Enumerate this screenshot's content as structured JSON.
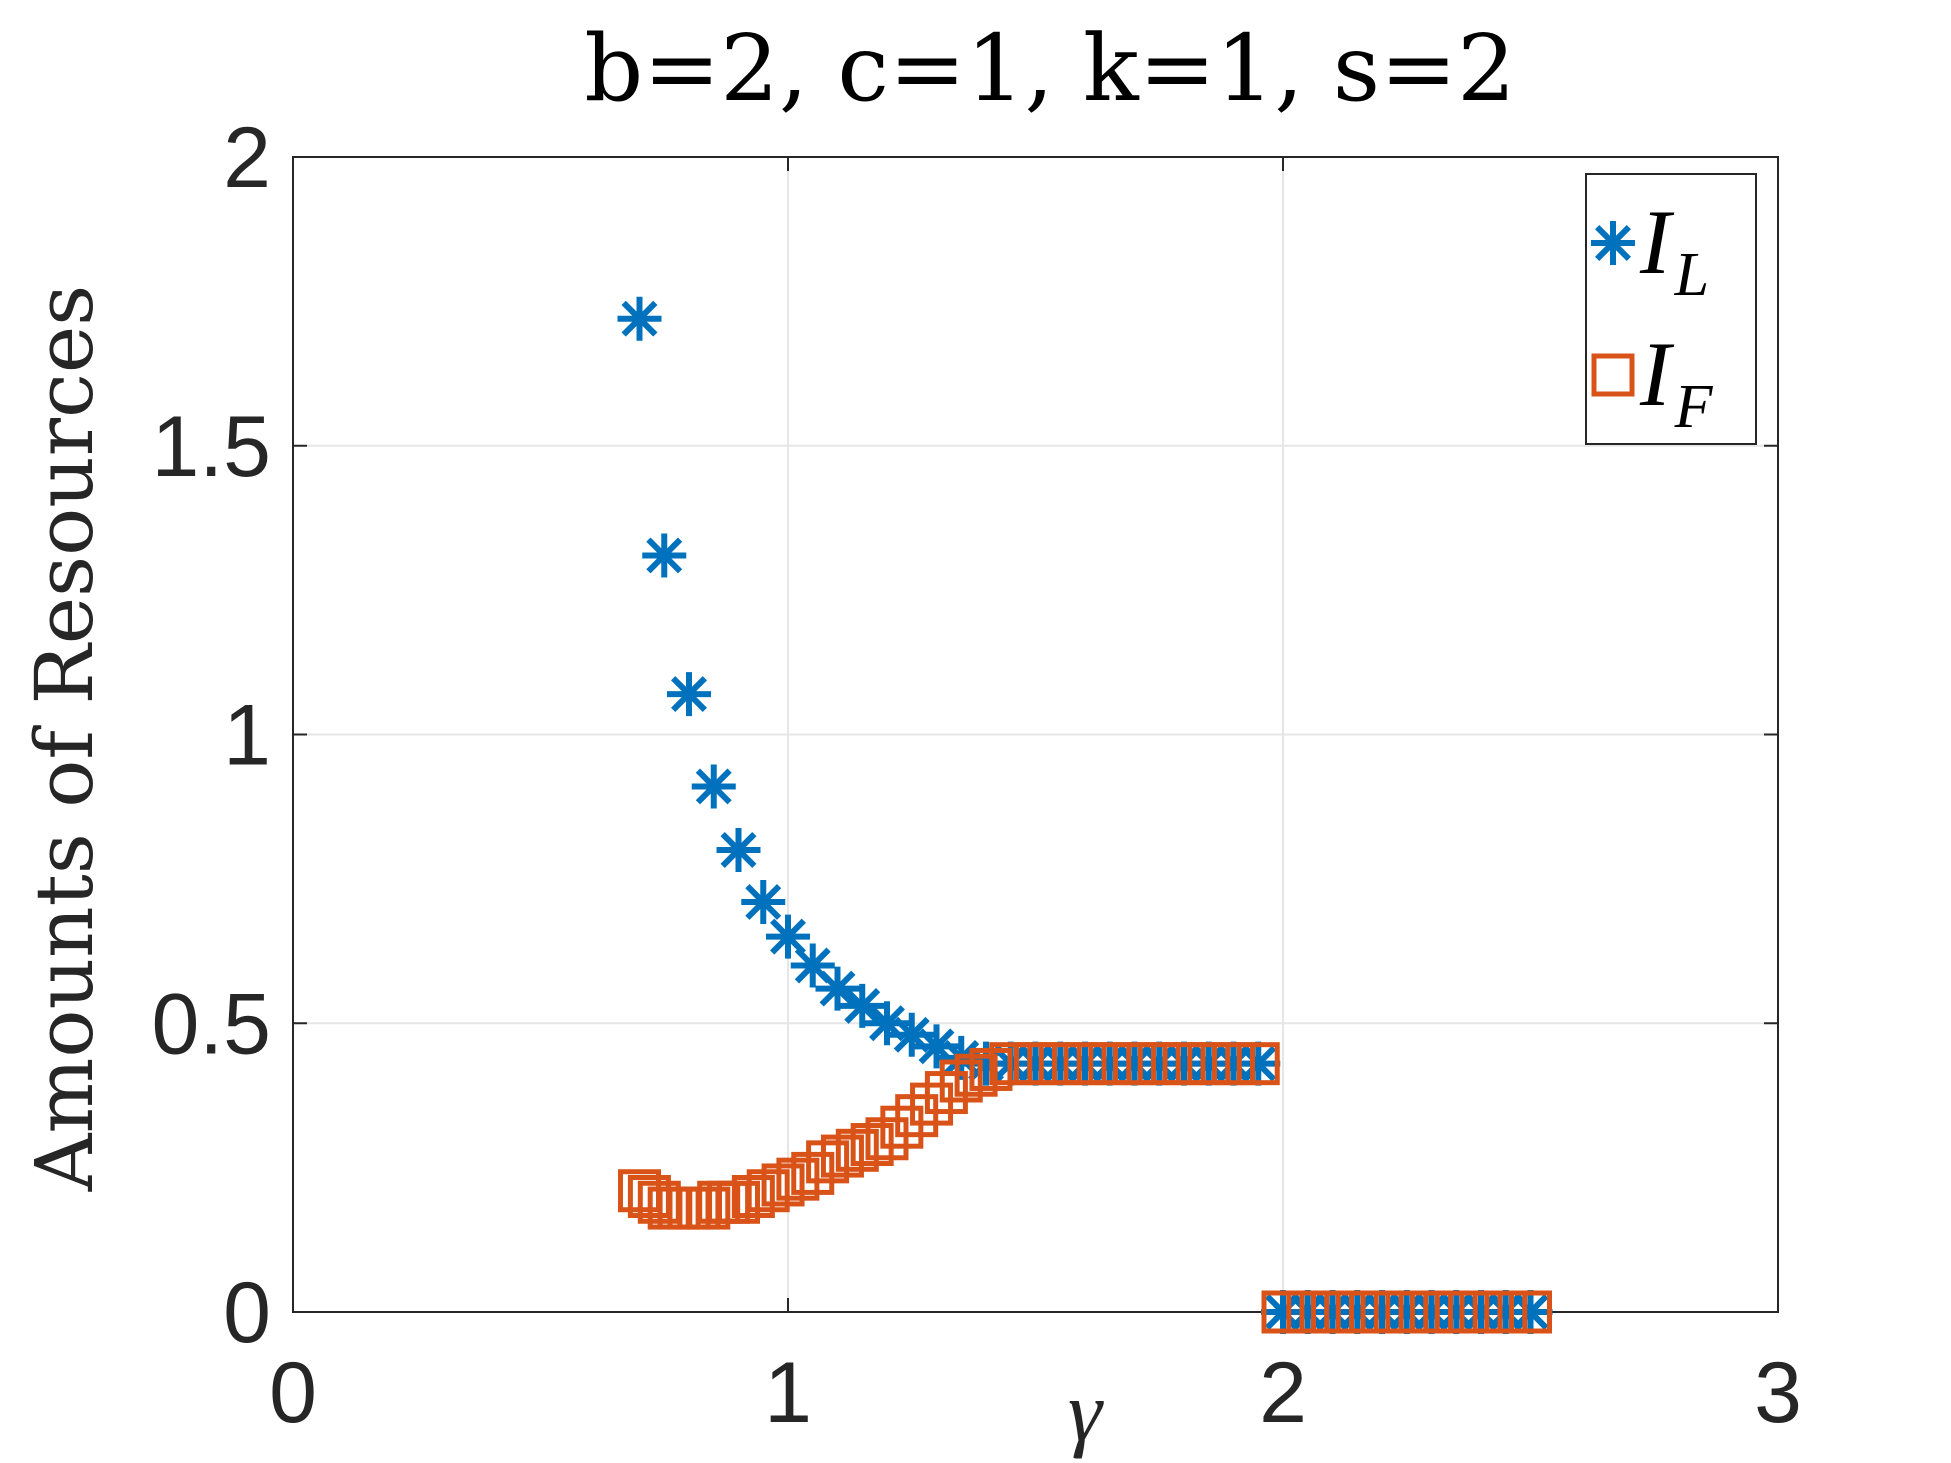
{
  "chart_data": {
    "type": "scatter",
    "title": "b=2, c=1, k=1, s=2",
    "xlabel": "γ",
    "ylabel": "Amounts of Resources",
    "xlim": [
      0,
      3
    ],
    "ylim": [
      0,
      2
    ],
    "xticks": [
      "0",
      "1",
      "2",
      "3"
    ],
    "yticks": [
      "0",
      "0.5",
      "1",
      "1.5",
      "2"
    ],
    "grid": true,
    "legend_position": "top-right",
    "series": [
      {
        "name": "I_L",
        "name_main": "I",
        "name_sub": "L",
        "marker": "asterisk",
        "color": "#0072BD",
        "x": [
          0.7,
          0.75,
          0.8,
          0.85,
          0.9,
          0.95,
          1.0,
          1.05,
          1.1,
          1.15,
          1.2,
          1.25,
          1.3,
          1.35,
          1.4,
          1.45,
          1.5,
          1.55,
          1.6,
          1.65,
          1.7,
          1.75,
          1.8,
          1.85,
          1.9,
          1.95,
          2.0,
          2.05,
          2.1,
          2.15,
          2.2,
          2.25,
          2.3,
          2.35,
          2.4,
          2.45,
          2.5
        ],
        "y": [
          1.72,
          1.31,
          1.07,
          0.91,
          0.8,
          0.71,
          0.65,
          0.6,
          0.56,
          0.53,
          0.5,
          0.48,
          0.46,
          0.44,
          0.43,
          0.43,
          0.43,
          0.43,
          0.43,
          0.43,
          0.43,
          0.43,
          0.43,
          0.43,
          0.43,
          0.43,
          0,
          0,
          0,
          0,
          0,
          0,
          0,
          0,
          0,
          0,
          0
        ]
      },
      {
        "name": "I_F",
        "name_main": "I",
        "name_sub": "F",
        "marker": "square",
        "color": "#D95319",
        "x": [
          0.7,
          0.72,
          0.74,
          0.76,
          0.78,
          0.8,
          0.82,
          0.84,
          0.86,
          0.88,
          0.9,
          0.93,
          0.96,
          0.99,
          1.02,
          1.05,
          1.08,
          1.11,
          1.14,
          1.17,
          1.2,
          1.23,
          1.26,
          1.29,
          1.32,
          1.35,
          1.38,
          1.41,
          1.45,
          1.5,
          1.55,
          1.6,
          1.65,
          1.7,
          1.75,
          1.8,
          1.85,
          1.9,
          1.95,
          2.0,
          2.05,
          2.1,
          2.15,
          2.2,
          2.25,
          2.3,
          2.35,
          2.4,
          2.45,
          2.5
        ],
        "y": [
          0.21,
          0.2,
          0.19,
          0.18,
          0.18,
          0.18,
          0.18,
          0.18,
          0.19,
          0.19,
          0.19,
          0.2,
          0.21,
          0.22,
          0.23,
          0.24,
          0.26,
          0.27,
          0.28,
          0.29,
          0.3,
          0.32,
          0.34,
          0.36,
          0.38,
          0.4,
          0.41,
          0.42,
          0.43,
          0.43,
          0.43,
          0.43,
          0.43,
          0.43,
          0.43,
          0.43,
          0.43,
          0.43,
          0.43,
          0,
          0,
          0,
          0,
          0,
          0,
          0,
          0,
          0,
          0,
          0
        ]
      }
    ]
  }
}
